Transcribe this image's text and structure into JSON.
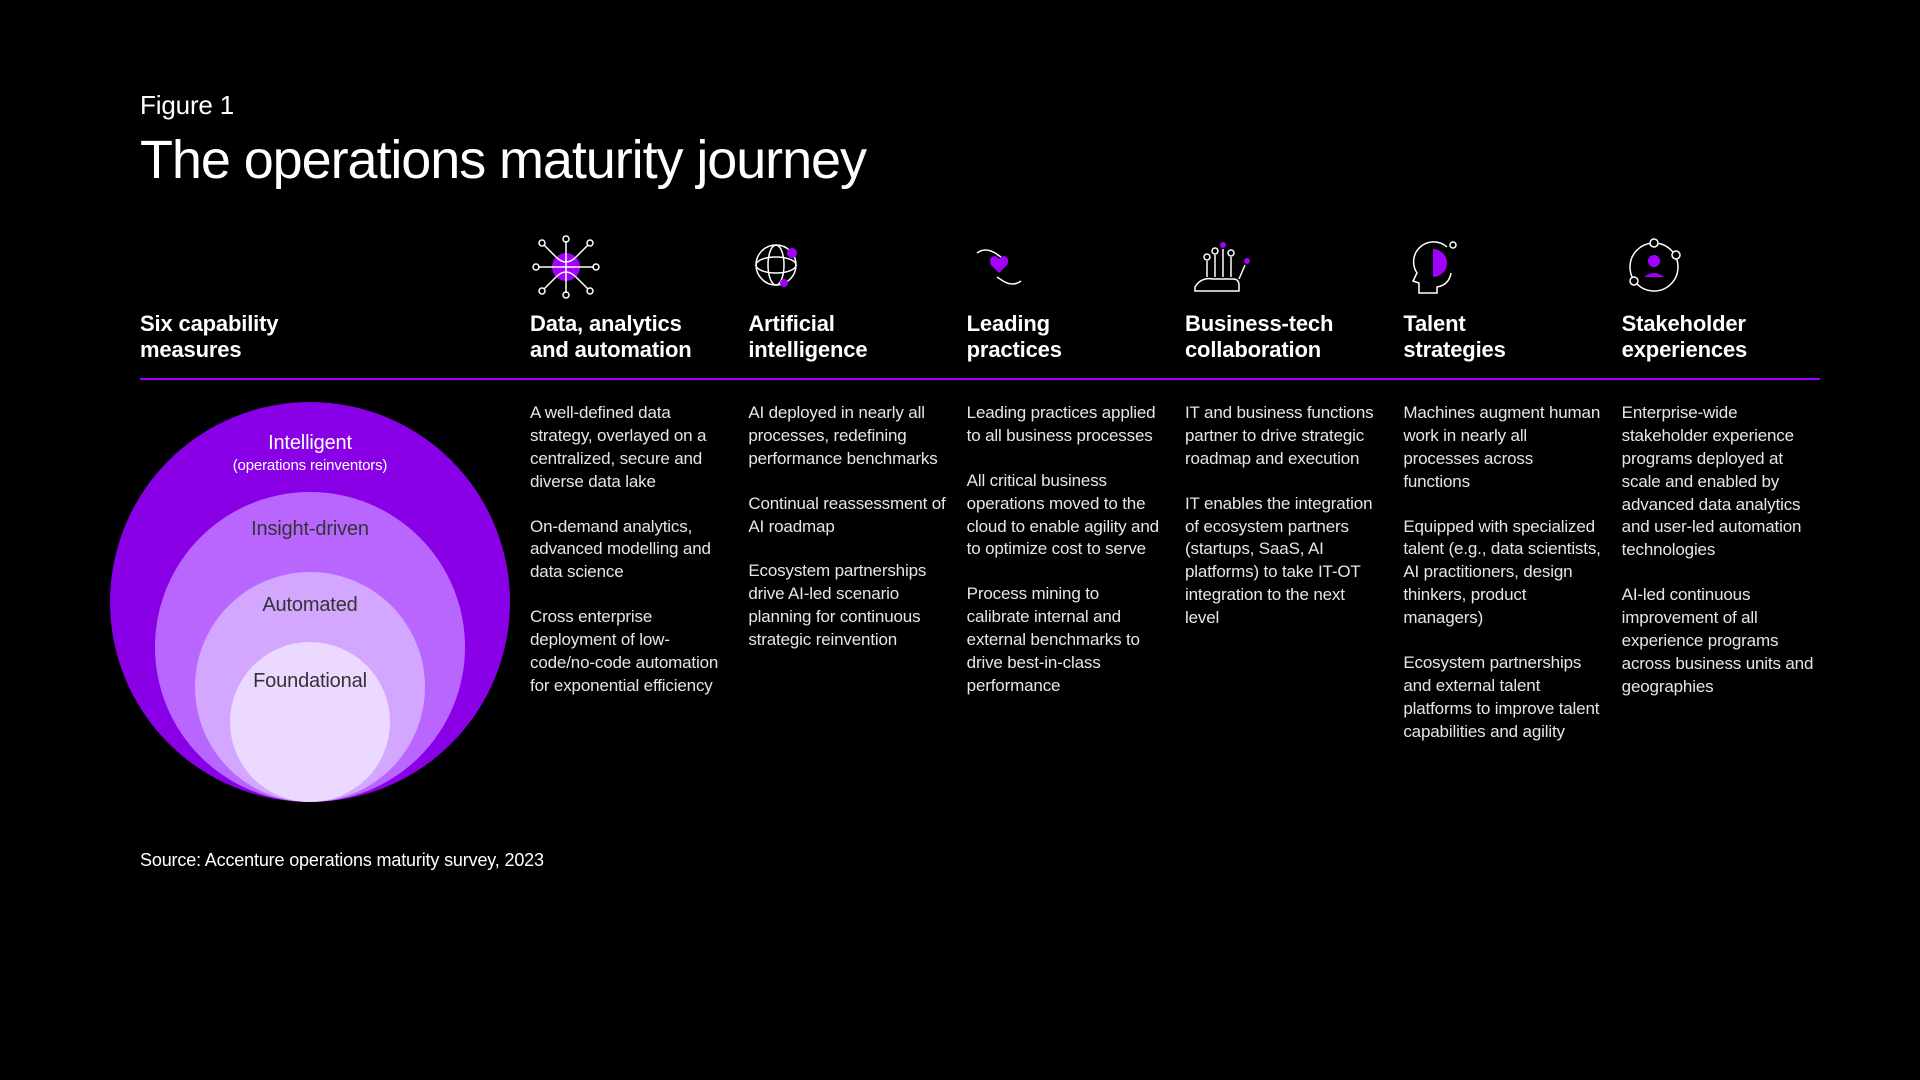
{
  "figure_label": "Figure 1",
  "title": "The operations maturity journey",
  "label_column_header": "Six capability\nmeasures",
  "source": "Source: Accenture operations maturity survey, 2023",
  "accent_color": "#a100ff",
  "background_color": "#000000",
  "circles": {
    "diameters": [
      400,
      310,
      230,
      160
    ],
    "colors": [
      "#8a00e6",
      "#b966ff",
      "#d3a6ff",
      "#ecd9ff"
    ],
    "label_colors": [
      "#ffffff",
      "#333333",
      "#333333",
      "#333333"
    ],
    "labels": [
      "Intelligent",
      "Insight-driven",
      "Automated",
      "Foundational"
    ],
    "sublabels": [
      "(operations reinventors)",
      "",
      "",
      ""
    ],
    "label_top_pad": [
      30,
      26,
      22,
      28
    ]
  },
  "columns": [
    {
      "icon": "data-network-icon",
      "header": "Data, analytics\nand automation",
      "paragraphs": [
        "A well-defined data strategy, overlayed on a centralized, secure and diverse data lake",
        "On-demand analytics, advanced modelling and data science",
        "Cross enterprise deployment of low-code/no-code automation for exponential efficiency"
      ]
    },
    {
      "icon": "ai-globe-icon",
      "header": "Artificial\nintelligence",
      "paragraphs": [
        "AI deployed in nearly all processes, redefining performance benchmarks",
        "Continual reassessment of AI roadmap",
        "Ecosystem partnerships drive AI-led scenario planning for continuous strategic reinvention"
      ]
    },
    {
      "icon": "hands-heart-icon",
      "header": "Leading\npractices",
      "paragraphs": [
        "Leading practices applied to all business processes",
        "All critical business operations moved to the cloud to enable agility and to optimize cost to serve",
        "Process mining to calibrate internal and external benchmarks to drive best-in-class performance"
      ]
    },
    {
      "icon": "circuit-hand-icon",
      "header": "Business-tech\ncollaboration",
      "paragraphs": [
        "IT and business functions partner to drive strategic roadmap and execution",
        "IT enables the integration of ecosystem partners (startups, SaaS, AI platforms) to take IT-OT integration to the next level"
      ]
    },
    {
      "icon": "talent-head-icon",
      "header": "Talent\nstrategies",
      "paragraphs": [
        "Machines augment human work in nearly all processes across functions",
        "Equipped with specialized talent (e.g., data scientists, AI practitioners, design thinkers, product managers)",
        "Ecosystem partnerships and external talent platforms to improve talent capabilities and agility"
      ]
    },
    {
      "icon": "stakeholder-orbit-icon",
      "header": "Stakeholder\nexperiences",
      "paragraphs": [
        "Enterprise-wide stakeholder experience programs deployed at scale and enabled by advanced data analytics and user-led automation technologies",
        "AI-led continuous improvement of all experience programs across business units and geographies"
      ]
    }
  ]
}
